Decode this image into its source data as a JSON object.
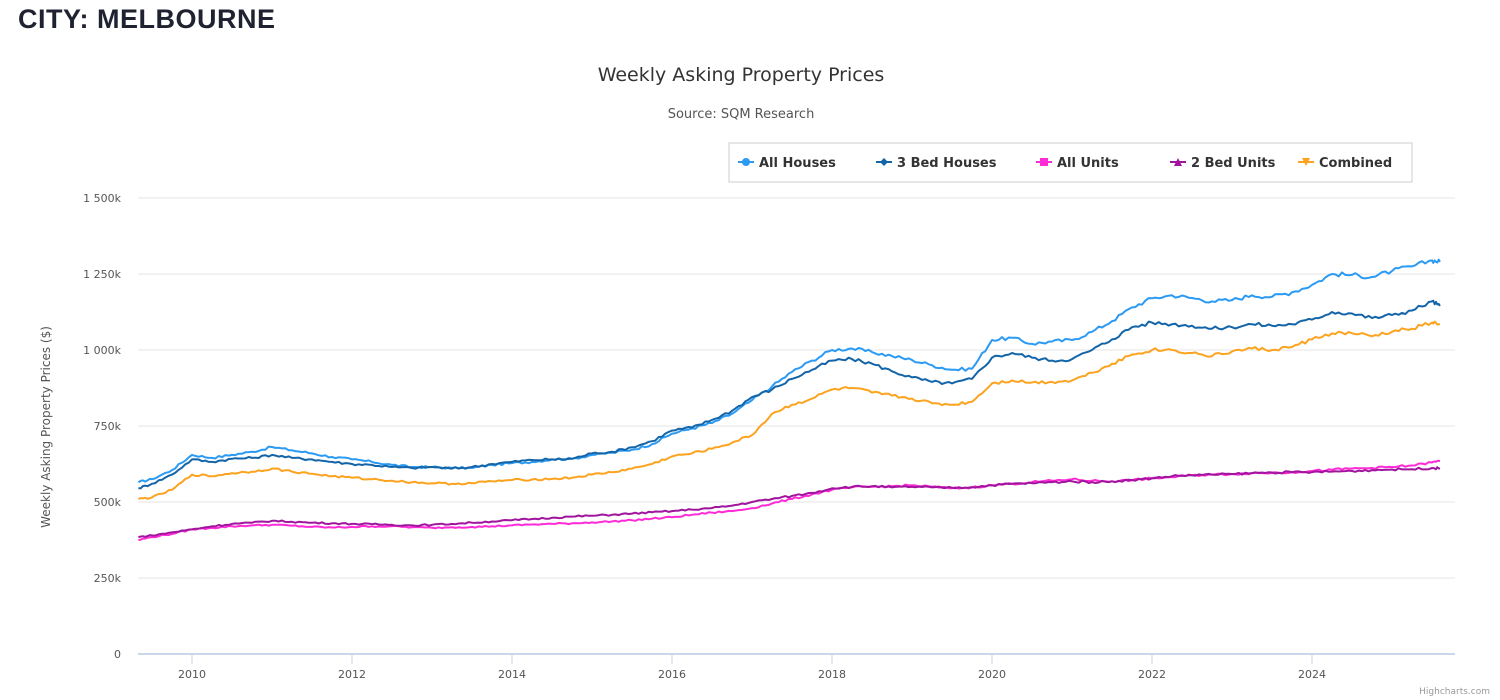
{
  "page": {
    "heading": "CITY: MELBOURNE"
  },
  "credits": "Highcharts.com",
  "chart_data": {
    "type": "line",
    "title": "Weekly Asking Property Prices",
    "subtitle": "Source: SQM Research",
    "xlabel": "",
    "ylabel": "Weekly Asking Property Prices ($)",
    "xlim": [
      2009.3,
      2025.65
    ],
    "ylim": [
      0,
      1500
    ],
    "grid": true,
    "legend_position": "top-right",
    "x_ticks": [
      2010,
      2012,
      2014,
      2016,
      2018,
      2020,
      2022,
      2024
    ],
    "x_tick_labels": [
      "2010",
      "2012",
      "2014",
      "2016",
      "2018",
      "2020",
      "2022",
      "2024"
    ],
    "y_ticks": [
      0,
      250,
      500,
      750,
      1000,
      1250,
      1500
    ],
    "y_tick_labels": [
      "0",
      "250k",
      "500k",
      "750k",
      "1 000k",
      "1 250k",
      "1 500k"
    ],
    "units": "thousands AUD",
    "x": [
      2009.33,
      2009.5,
      2009.75,
      2010.0,
      2010.25,
      2010.5,
      2010.75,
      2011.0,
      2011.25,
      2011.5,
      2011.75,
      2012.0,
      2012.25,
      2012.5,
      2012.75,
      2013.0,
      2013.25,
      2013.5,
      2013.75,
      2014.0,
      2014.25,
      2014.5,
      2014.75,
      2015.0,
      2015.25,
      2015.5,
      2015.75,
      2016.0,
      2016.25,
      2016.5,
      2016.75,
      2017.0,
      2017.25,
      2017.5,
      2017.75,
      2018.0,
      2018.25,
      2018.5,
      2018.75,
      2019.0,
      2019.25,
      2019.5,
      2019.75,
      2020.0,
      2020.25,
      2020.5,
      2020.75,
      2021.0,
      2021.25,
      2021.5,
      2021.75,
      2022.0,
      2022.25,
      2022.5,
      2022.75,
      2023.0,
      2023.25,
      2023.5,
      2023.75,
      2024.0,
      2024.25,
      2024.5,
      2024.75,
      2025.0,
      2025.25,
      2025.5,
      2025.6
    ],
    "series": [
      {
        "name": "All Houses",
        "color": "#2b9af3",
        "marker": "circle",
        "values": [
          565,
          575,
          605,
          655,
          645,
          655,
          665,
          681,
          670,
          660,
          648,
          640,
          632,
          622,
          615,
          615,
          612,
          612,
          622,
          628,
          632,
          640,
          642,
          655,
          662,
          672,
          690,
          725,
          742,
          760,
          790,
          835,
          880,
          928,
          965,
          1000,
          1005,
          993,
          980,
          967,
          950,
          935,
          938,
          1033,
          1040,
          1020,
          1028,
          1033,
          1060,
          1095,
          1140,
          1170,
          1180,
          1171,
          1160,
          1164,
          1180,
          1175,
          1190,
          1214,
          1250,
          1247,
          1240,
          1260,
          1275,
          1295,
          1290
        ]
      },
      {
        "name": "3 Bed Houses",
        "color": "#1465a8",
        "marker": "diamond",
        "values": [
          545,
          560,
          590,
          640,
          632,
          642,
          645,
          655,
          645,
          640,
          632,
          625,
          622,
          615,
          612,
          615,
          610,
          615,
          625,
          632,
          638,
          640,
          642,
          660,
          665,
          680,
          700,
          735,
          745,
          770,
          800,
          845,
          870,
          905,
          935,
          965,
          970,
          955,
          930,
          910,
          895,
          890,
          905,
          975,
          990,
          975,
          965,
          970,
          1000,
          1035,
          1075,
          1090,
          1085,
          1080,
          1070,
          1075,
          1085,
          1080,
          1085,
          1100,
          1125,
          1120,
          1105,
          1115,
          1130,
          1160,
          1145
        ]
      },
      {
        "name": "All Units",
        "color": "#ff2bd7",
        "marker": "square",
        "values": [
          375,
          385,
          395,
          410,
          415,
          420,
          423,
          425,
          422,
          418,
          416,
          418,
          420,
          420,
          417,
          415,
          417,
          418,
          420,
          423,
          426,
          428,
          430,
          433,
          436,
          440,
          445,
          450,
          458,
          465,
          470,
          480,
          495,
          510,
          525,
          540,
          548,
          550,
          552,
          555,
          550,
          545,
          548,
          555,
          560,
          565,
          570,
          575,
          570,
          568,
          572,
          578,
          582,
          588,
          590,
          592,
          595,
          596,
          598,
          602,
          606,
          610,
          612,
          615,
          620,
          630,
          635
        ]
      },
      {
        "name": "2 Bed Units",
        "color": "#a0149e",
        "marker": "triangle",
        "values": [
          385,
          390,
          400,
          410,
          420,
          428,
          432,
          438,
          435,
          432,
          430,
          428,
          427,
          425,
          423,
          425,
          428,
          432,
          436,
          440,
          444,
          448,
          452,
          455,
          458,
          462,
          466,
          470,
          475,
          480,
          488,
          500,
          510,
          520,
          530,
          545,
          550,
          552,
          548,
          550,
          548,
          547,
          549,
          555,
          560,
          562,
          565,
          568,
          565,
          568,
          572,
          578,
          585,
          588,
          590,
          592,
          595,
          597,
          598,
          598,
          600,
          602,
          605,
          607,
          608,
          612,
          610
        ]
      },
      {
        "name": "Combined",
        "color": "#fca31f",
        "marker": "triangle-down",
        "values": [
          510,
          515,
          540,
          590,
          585,
          595,
          600,
          610,
          600,
          593,
          585,
          580,
          575,
          570,
          565,
          562,
          560,
          562,
          568,
          572,
          574,
          576,
          580,
          590,
          598,
          610,
          625,
          650,
          660,
          675,
          695,
          720,
          790,
          820,
          840,
          870,
          875,
          860,
          850,
          840,
          825,
          820,
          830,
          890,
          900,
          893,
          895,
          900,
          925,
          955,
          985,
          1000,
          1000,
          990,
          980,
          995,
          1005,
          1000,
          1010,
          1035,
          1055,
          1055,
          1045,
          1060,
          1070,
          1090,
          1085
        ]
      }
    ]
  }
}
